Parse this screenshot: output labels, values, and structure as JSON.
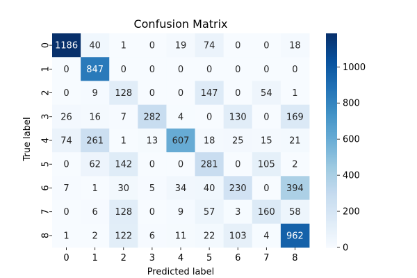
{
  "chart_data": {
    "type": "heatmap",
    "title": "Confusion Matrix",
    "xlabel": "Predicted label",
    "ylabel": "True label",
    "x_categories": [
      "0",
      "1",
      "2",
      "3",
      "4",
      "5",
      "6",
      "7",
      "8"
    ],
    "y_categories": [
      "0",
      "1",
      "2",
      "3",
      "4",
      "5",
      "6",
      "7",
      "8"
    ],
    "values": [
      [
        1186,
        40,
        1,
        0,
        19,
        74,
        0,
        0,
        18
      ],
      [
        0,
        847,
        0,
        0,
        0,
        0,
        0,
        0,
        0
      ],
      [
        0,
        9,
        128,
        0,
        0,
        147,
        0,
        54,
        1
      ],
      [
        26,
        16,
        7,
        282,
        4,
        0,
        130,
        0,
        169
      ],
      [
        74,
        261,
        1,
        13,
        607,
        18,
        25,
        15,
        21
      ],
      [
        0,
        62,
        142,
        0,
        0,
        281,
        0,
        105,
        2
      ],
      [
        7,
        1,
        30,
        5,
        34,
        40,
        230,
        0,
        394
      ],
      [
        0,
        6,
        128,
        0,
        9,
        57,
        3,
        160,
        58
      ],
      [
        1,
        2,
        122,
        6,
        11,
        22,
        103,
        4,
        962
      ]
    ],
    "colorbar": {
      "colormap": "Blues",
      "vmin": 0,
      "vmax": 1186,
      "ticks": [
        0,
        200,
        400,
        600,
        800,
        1000
      ]
    }
  }
}
